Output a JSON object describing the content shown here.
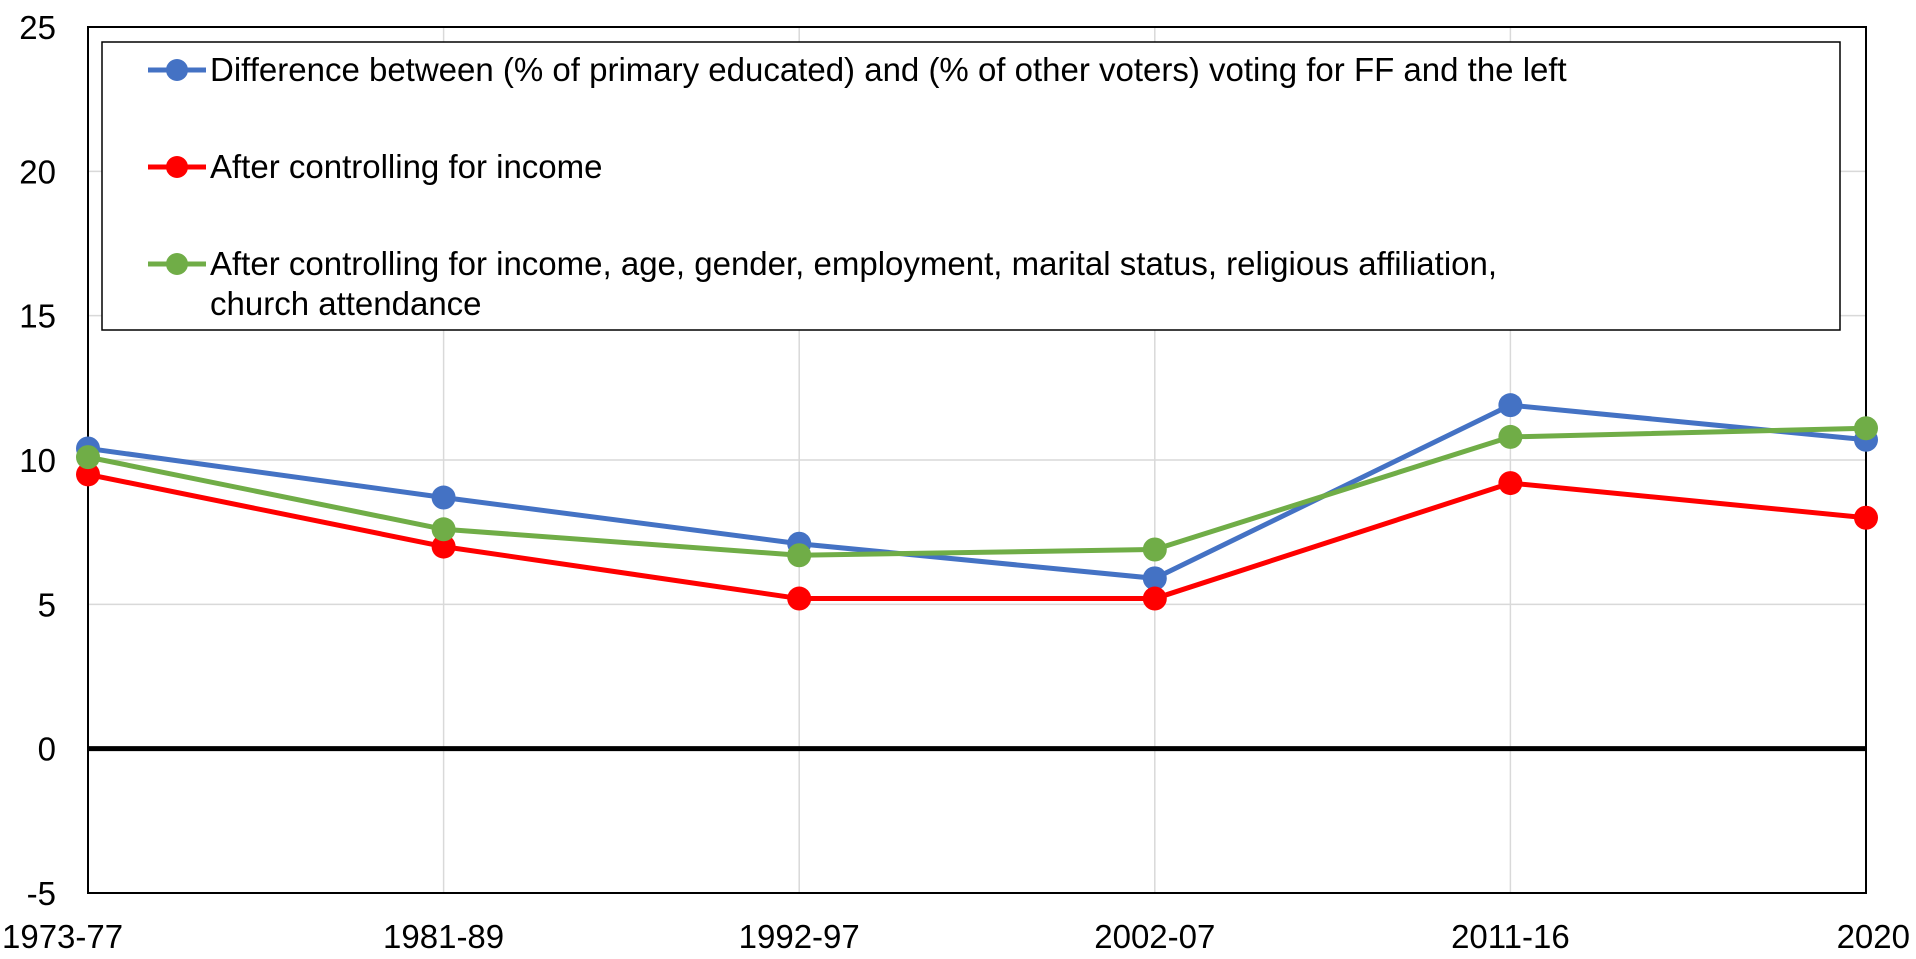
{
  "chart_data": {
    "type": "line",
    "title": "",
    "xlabel": "",
    "ylabel": "",
    "categories": [
      "1973-77",
      "1981-89",
      "1992-97",
      "2002-07",
      "2011-16",
      "2020"
    ],
    "ylim": [
      -5,
      25
    ],
    "yticks": [
      "-5",
      "0",
      "5",
      "10",
      "15",
      "20",
      "25"
    ],
    "grid": true,
    "legend_position": "top",
    "series": [
      {
        "name": "Difference between (% of primary educated) and (% of other voters) voting for FF and the left",
        "color": "#4472c4",
        "values": [
          10.4,
          8.7,
          7.1,
          5.9,
          11.9,
          10.7
        ]
      },
      {
        "name": "After controlling for income",
        "color": "#ff0000",
        "values": [
          9.5,
          7.0,
          5.2,
          5.2,
          9.2,
          8.0
        ]
      },
      {
        "name": "After controlling for income, age, gender, employment, marital status, religious affiliation, church attendance",
        "color": "#70ad47",
        "values": [
          10.1,
          7.6,
          6.7,
          6.9,
          10.8,
          11.1
        ]
      }
    ]
  }
}
